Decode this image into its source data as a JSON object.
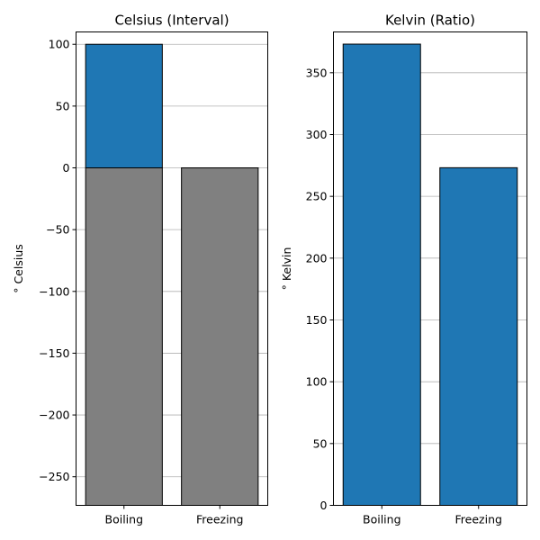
{
  "chart_data": [
    {
      "type": "bar",
      "title": "Celsius (Interval)",
      "ylabel": "$^\\circ$ Celsius",
      "ylabel_display": "°  Celsius",
      "categories": [
        "Boiling",
        "Freezing"
      ],
      "background_bars": {
        "values": [
          -273.15,
          -273.15
        ],
        "color": "#808080"
      },
      "values": [
        100,
        0
      ],
      "bar_color": "#1f77b4",
      "edge_color": "#000000",
      "ylim": [
        -273.15,
        110
      ],
      "yticks": [
        100,
        50,
        0,
        -50,
        -100,
        -150,
        -200,
        -250
      ],
      "ytick_labels": [
        "100",
        "50",
        "0",
        "−50",
        "−100",
        "−150",
        "−200",
        "−250"
      ],
      "grid": "y"
    },
    {
      "type": "bar",
      "title": "Kelvin (Ratio)",
      "ylabel": "$^\\circ$ Kelvin",
      "ylabel_display": "°  Kelvin",
      "categories": [
        "Boiling",
        "Freezing"
      ],
      "values": [
        373.15,
        273.15
      ],
      "bar_color": "#1f77b4",
      "edge_color": "#000000",
      "ylim": [
        0,
        383
      ],
      "yticks": [
        0,
        50,
        100,
        150,
        200,
        250,
        300,
        350
      ],
      "ytick_labels": [
        "0",
        "50",
        "100",
        "150",
        "200",
        "250",
        "300",
        "350"
      ],
      "grid": "y"
    }
  ]
}
